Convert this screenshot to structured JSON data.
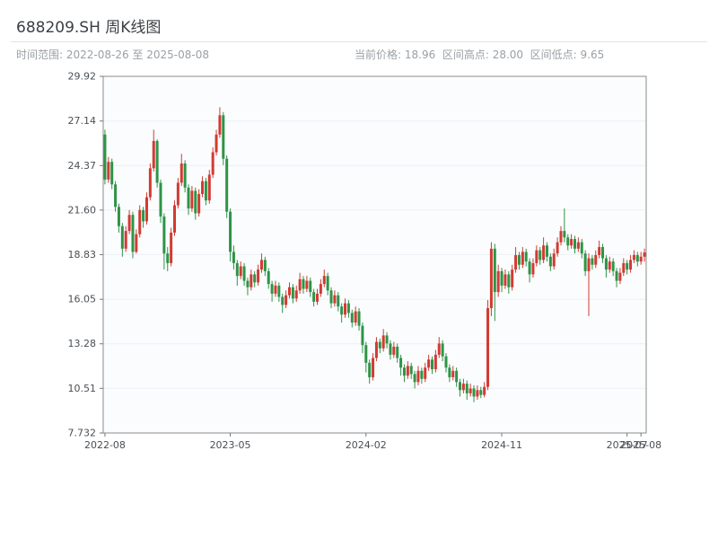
{
  "header": {
    "title": "688209.SH 周K线图",
    "time_range_label": "时间范围: 2022-08-26 至 2025-08-08",
    "stats_label": "当前价格: 18.96  区间高点: 28.00  区间低点: 9.65"
  },
  "chart_data": {
    "type": "candlestick",
    "title": "688209.SH 周K线图",
    "frequency": "weekly",
    "date_range": {
      "start": "2022-08-26",
      "end": "2025-08-08"
    },
    "current_price": 18.96,
    "range_high": 28.0,
    "range_low": 9.65,
    "ylim": [
      7.732,
      29.92
    ],
    "y_ticks": [
      "29.92",
      "27.14",
      "24.37",
      "21.60",
      "18.83",
      "16.05",
      "13.28",
      "10.51",
      "7.732"
    ],
    "x_ticks": [
      {
        "label": "2022-08",
        "index": 0
      },
      {
        "label": "2023-05",
        "index": 36
      },
      {
        "label": "2024-02",
        "index": 75
      },
      {
        "label": "2024-11",
        "index": 114
      },
      {
        "label": "2025-07",
        "index": 150
      },
      {
        "label": "2025-08",
        "index": 154
      }
    ],
    "up_color": "#d13b33",
    "down_color": "#2e9447",
    "grid_color": "#edf0f4",
    "plot_bg": "#fbfcfe",
    "border_color": "#8a8a8a",
    "candles": [
      [
        26.3,
        26.6,
        23.2,
        23.5
      ],
      [
        23.5,
        24.9,
        23.3,
        24.6
      ],
      [
        24.6,
        24.8,
        22.9,
        23.2
      ],
      [
        23.2,
        23.4,
        21.5,
        21.8
      ],
      [
        21.8,
        22.0,
        20.2,
        20.6
      ],
      [
        20.6,
        20.8,
        18.7,
        19.2
      ],
      [
        19.2,
        20.6,
        19.0,
        20.3
      ],
      [
        20.3,
        21.6,
        20.1,
        21.3
      ],
      [
        21.3,
        21.5,
        18.6,
        19.0
      ],
      [
        19.0,
        20.4,
        18.9,
        20.1
      ],
      [
        20.1,
        21.9,
        19.9,
        21.6
      ],
      [
        21.6,
        21.8,
        20.5,
        20.9
      ],
      [
        20.9,
        22.7,
        20.7,
        22.4
      ],
      [
        22.4,
        24.5,
        22.2,
        24.2
      ],
      [
        24.2,
        26.6,
        24.0,
        25.9
      ],
      [
        25.9,
        26.0,
        23.0,
        23.3
      ],
      [
        23.3,
        23.5,
        20.8,
        21.2
      ],
      [
        21.2,
        21.4,
        17.9,
        18.9
      ],
      [
        18.9,
        19.3,
        17.8,
        18.3
      ],
      [
        18.3,
        20.5,
        18.1,
        20.2
      ],
      [
        20.2,
        22.2,
        20.0,
        21.9
      ],
      [
        21.9,
        23.6,
        21.7,
        23.3
      ],
      [
        23.3,
        25.1,
        23.1,
        24.5
      ],
      [
        24.5,
        24.7,
        22.7,
        23.0
      ],
      [
        23.0,
        23.2,
        21.3,
        21.7
      ],
      [
        21.7,
        23.1,
        21.5,
        22.8
      ],
      [
        22.8,
        23.0,
        21.0,
        21.4
      ],
      [
        21.4,
        22.9,
        21.2,
        22.6
      ],
      [
        22.6,
        23.7,
        22.4,
        23.4
      ],
      [
        23.4,
        23.6,
        21.9,
        22.2
      ],
      [
        22.2,
        24.1,
        22.0,
        23.8
      ],
      [
        23.8,
        25.5,
        23.6,
        25.2
      ],
      [
        25.2,
        26.6,
        25.0,
        26.3
      ],
      [
        26.3,
        28.0,
        26.1,
        27.5
      ],
      [
        27.5,
        27.7,
        24.4,
        24.8
      ],
      [
        24.8,
        25.0,
        21.1,
        21.5
      ],
      [
        21.5,
        21.7,
        18.4,
        19.0
      ],
      [
        19.0,
        19.4,
        17.9,
        18.3
      ],
      [
        18.3,
        18.5,
        16.9,
        17.5
      ],
      [
        17.5,
        18.4,
        17.3,
        18.1
      ],
      [
        18.1,
        18.3,
        16.9,
        17.2
      ],
      [
        17.2,
        17.4,
        16.3,
        16.8
      ],
      [
        16.8,
        17.9,
        16.6,
        17.6
      ],
      [
        17.6,
        17.8,
        16.8,
        17.1
      ],
      [
        17.1,
        18.2,
        16.9,
        17.9
      ],
      [
        17.9,
        18.9,
        17.7,
        18.5
      ],
      [
        18.5,
        18.7,
        17.5,
        17.8
      ],
      [
        17.8,
        18.0,
        16.7,
        17.0
      ],
      [
        17.0,
        17.2,
        15.9,
        16.4
      ],
      [
        16.4,
        17.2,
        16.2,
        16.9
      ],
      [
        16.9,
        17.1,
        15.9,
        16.2
      ],
      [
        16.2,
        16.4,
        15.2,
        15.7
      ],
      [
        15.7,
        16.6,
        15.5,
        16.3
      ],
      [
        16.3,
        17.1,
        16.1,
        16.8
      ],
      [
        16.8,
        17.0,
        15.8,
        16.1
      ],
      [
        16.1,
        16.9,
        15.9,
        16.6
      ],
      [
        16.6,
        17.7,
        16.4,
        17.3
      ],
      [
        17.3,
        17.5,
        16.4,
        16.7
      ],
      [
        16.7,
        17.5,
        16.5,
        17.2
      ],
      [
        17.2,
        17.4,
        16.2,
        16.5
      ],
      [
        16.5,
        16.7,
        15.6,
        15.9
      ],
      [
        15.9,
        16.7,
        15.7,
        16.4
      ],
      [
        16.4,
        17.3,
        16.2,
        17.0
      ],
      [
        17.0,
        17.9,
        16.8,
        17.5
      ],
      [
        17.5,
        17.7,
        16.3,
        16.6
      ],
      [
        16.6,
        16.8,
        15.5,
        15.8
      ],
      [
        15.8,
        16.6,
        15.6,
        16.3
      ],
      [
        16.3,
        16.5,
        15.3,
        15.6
      ],
      [
        15.6,
        15.8,
        14.6,
        15.1
      ],
      [
        15.1,
        16.1,
        14.9,
        15.8
      ],
      [
        15.8,
        16.0,
        14.9,
        15.2
      ],
      [
        15.2,
        15.4,
        14.3,
        14.6
      ],
      [
        14.6,
        15.6,
        14.4,
        15.3
      ],
      [
        15.3,
        15.5,
        14.1,
        14.4
      ],
      [
        14.4,
        14.6,
        12.7,
        13.2
      ],
      [
        13.2,
        13.4,
        11.5,
        12.1
      ],
      [
        12.1,
        12.3,
        10.8,
        11.2
      ],
      [
        11.2,
        12.7,
        11.0,
        12.4
      ],
      [
        12.4,
        13.7,
        12.2,
        13.4
      ],
      [
        13.4,
        13.6,
        12.7,
        13.0
      ],
      [
        13.0,
        14.2,
        12.8,
        13.8
      ],
      [
        13.8,
        14.0,
        13.0,
        13.3
      ],
      [
        13.3,
        13.5,
        12.3,
        12.6
      ],
      [
        12.6,
        13.4,
        12.4,
        13.1
      ],
      [
        13.1,
        13.3,
        12.1,
        12.4
      ],
      [
        12.4,
        12.6,
        11.3,
        11.8
      ],
      [
        11.8,
        12.0,
        10.9,
        11.3
      ],
      [
        11.3,
        12.2,
        11.1,
        11.9
      ],
      [
        11.9,
        12.1,
        11.1,
        11.4
      ],
      [
        11.4,
        11.6,
        10.5,
        10.9
      ],
      [
        10.9,
        11.9,
        10.7,
        11.6
      ],
      [
        11.6,
        11.8,
        10.8,
        11.1
      ],
      [
        11.1,
        12.1,
        10.9,
        11.8
      ],
      [
        11.8,
        12.6,
        11.6,
        12.3
      ],
      [
        12.3,
        12.5,
        11.4,
        11.7
      ],
      [
        11.7,
        12.9,
        11.5,
        12.6
      ],
      [
        12.6,
        13.7,
        12.4,
        13.3
      ],
      [
        13.3,
        13.5,
        12.2,
        12.5
      ],
      [
        12.5,
        12.7,
        11.5,
        11.8
      ],
      [
        11.8,
        12.0,
        10.9,
        11.2
      ],
      [
        11.2,
        11.9,
        11.0,
        11.6
      ],
      [
        11.6,
        11.8,
        10.6,
        10.9
      ],
      [
        10.9,
        11.1,
        10.0,
        10.4
      ],
      [
        10.4,
        11.1,
        10.2,
        10.8
      ],
      [
        10.8,
        11.0,
        9.8,
        10.2
      ],
      [
        10.2,
        10.8,
        10.0,
        10.5
      ],
      [
        10.5,
        10.7,
        9.65,
        10.0
      ],
      [
        10.0,
        10.7,
        9.8,
        10.4
      ],
      [
        10.4,
        10.6,
        9.9,
        10.1
      ],
      [
        10.1,
        10.9,
        9.95,
        10.6
      ],
      [
        10.6,
        16.0,
        10.4,
        15.5
      ],
      [
        15.5,
        19.6,
        15.0,
        19.2
      ],
      [
        19.2,
        19.5,
        14.7,
        16.5
      ],
      [
        16.5,
        18.2,
        16.2,
        17.8
      ],
      [
        17.8,
        18.0,
        16.5,
        16.9
      ],
      [
        16.9,
        17.9,
        16.7,
        17.6
      ],
      [
        17.6,
        17.8,
        16.4,
        16.8
      ],
      [
        16.8,
        18.2,
        16.6,
        17.9
      ],
      [
        17.9,
        19.3,
        17.7,
        18.8
      ],
      [
        18.8,
        19.0,
        17.9,
        18.2
      ],
      [
        18.2,
        19.3,
        18.0,
        19.0
      ],
      [
        19.0,
        19.2,
        18.1,
        18.4
      ],
      [
        18.4,
        18.6,
        17.1,
        17.6
      ],
      [
        17.6,
        18.6,
        17.4,
        18.3
      ],
      [
        18.3,
        19.4,
        18.1,
        19.1
      ],
      [
        19.1,
        19.3,
        18.2,
        18.5
      ],
      [
        18.5,
        19.9,
        18.3,
        19.4
      ],
      [
        19.4,
        19.6,
        18.4,
        18.7
      ],
      [
        18.7,
        18.9,
        17.8,
        18.1
      ],
      [
        18.1,
        19.2,
        17.9,
        18.9
      ],
      [
        18.9,
        19.9,
        18.7,
        19.6
      ],
      [
        19.6,
        20.6,
        19.4,
        20.3
      ],
      [
        20.3,
        21.7,
        19.6,
        19.9
      ],
      [
        19.9,
        20.1,
        19.1,
        19.4
      ],
      [
        19.4,
        20.1,
        19.2,
        19.8
      ],
      [
        19.8,
        20.0,
        18.9,
        19.2
      ],
      [
        19.2,
        19.9,
        19.0,
        19.6
      ],
      [
        19.6,
        19.8,
        18.6,
        18.9
      ],
      [
        18.9,
        19.1,
        17.5,
        17.8
      ],
      [
        17.8,
        18.9,
        15.0,
        18.6
      ],
      [
        18.6,
        18.8,
        17.9,
        18.2
      ],
      [
        18.2,
        19.1,
        18.0,
        18.8
      ],
      [
        18.8,
        19.7,
        18.6,
        19.3
      ],
      [
        19.3,
        19.5,
        18.3,
        18.6
      ],
      [
        18.6,
        18.8,
        17.4,
        17.9
      ],
      [
        17.9,
        18.7,
        17.7,
        18.4
      ],
      [
        18.4,
        18.6,
        17.5,
        17.8
      ],
      [
        17.8,
        18.0,
        16.8,
        17.2
      ],
      [
        17.2,
        18.0,
        17.0,
        17.7
      ],
      [
        17.7,
        18.6,
        17.5,
        18.3
      ],
      [
        18.3,
        18.5,
        17.6,
        17.9
      ],
      [
        17.9,
        18.8,
        17.7,
        18.5
      ],
      [
        18.5,
        19.1,
        18.3,
        18.8
      ],
      [
        18.8,
        19.0,
        18.1,
        18.4
      ],
      [
        18.4,
        19.0,
        18.2,
        18.7
      ],
      [
        18.7,
        19.2,
        18.4,
        18.96
      ]
    ]
  }
}
